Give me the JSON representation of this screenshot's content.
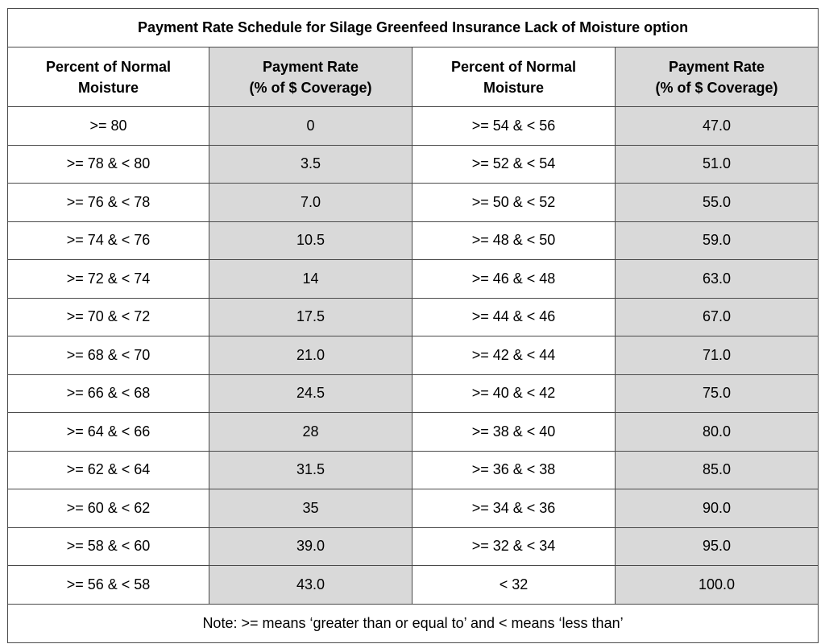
{
  "title": "Payment Rate Schedule for Silage Greenfeed Insurance Lack of Moisture option",
  "headers": {
    "moisture": [
      "Percent of Normal",
      "Moisture"
    ],
    "rate": [
      "Payment Rate",
      "(% of $ Coverage)"
    ]
  },
  "rows": [
    {
      "m1": ">= 80",
      "r1": "0",
      "m2": ">= 54 & < 56",
      "r2": "47.0"
    },
    {
      "m1": ">= 78 & < 80",
      "r1": "3.5",
      "m2": ">= 52 & < 54",
      "r2": "51.0"
    },
    {
      "m1": ">= 76 & < 78",
      "r1": "7.0",
      "m2": ">= 50 & < 52",
      "r2": "55.0"
    },
    {
      "m1": ">= 74 & < 76",
      "r1": "10.5",
      "m2": ">= 48 & < 50",
      "r2": "59.0"
    },
    {
      "m1": ">= 72 & < 74",
      "r1": "14",
      "m2": ">= 46 & < 48",
      "r2": "63.0"
    },
    {
      "m1": ">= 70 & < 72",
      "r1": "17.5",
      "m2": ">= 44 & < 46",
      "r2": "67.0"
    },
    {
      "m1": ">= 68 & < 70",
      "r1": "21.0",
      "m2": ">= 42 & < 44",
      "r2": "71.0"
    },
    {
      "m1": ">= 66 & < 68",
      "r1": "24.5",
      "m2": ">= 40 & < 42",
      "r2": "75.0"
    },
    {
      "m1": ">= 64 & < 66",
      "r1": "28",
      "m2": ">= 38 & < 40",
      "r2": "80.0"
    },
    {
      "m1": ">= 62 & < 64",
      "r1": "31.5",
      "m2": ">= 36 & < 38",
      "r2": "85.0"
    },
    {
      "m1": ">= 60 & < 62",
      "r1": "35",
      "m2": ">= 34 & < 36",
      "r2": "90.0"
    },
    {
      "m1": ">= 58 & < 60",
      "r1": "39.0",
      "m2": ">= 32 & < 34",
      "r2": "95.0"
    },
    {
      "m1": ">= 56 & < 58",
      "r1": "43.0",
      "m2": "< 32",
      "r2": "100.0"
    }
  ],
  "note": "Note: >= means ‘greater than or equal to’ and < means ‘less than’",
  "colors": {
    "shade": "#d9d9d9",
    "border": "#4a4a4a"
  }
}
